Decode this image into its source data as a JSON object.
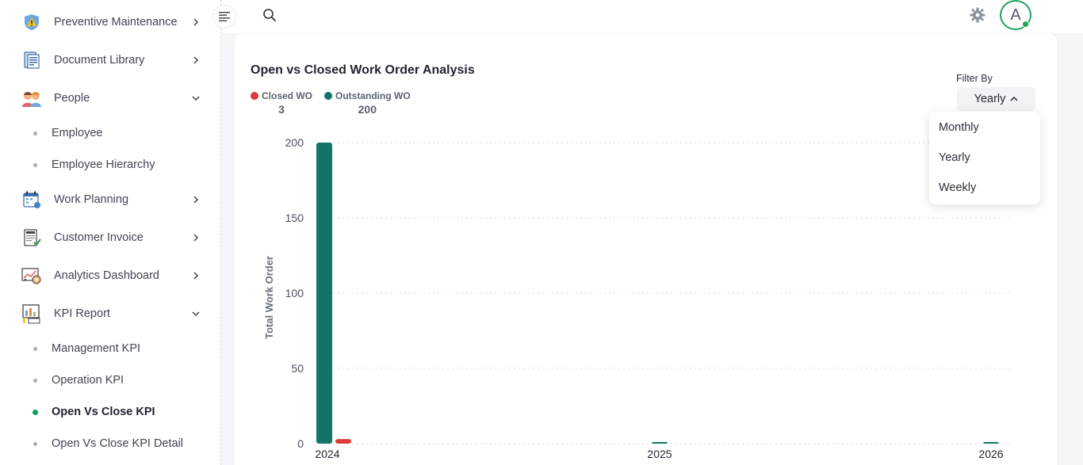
{
  "sidebar": {
    "items": [
      {
        "label": "Preventive Maintenance",
        "icon": "warning-shield-icon",
        "chevron": "right"
      },
      {
        "label": "Document Library",
        "icon": "document-library-icon",
        "chevron": "right"
      },
      {
        "label": "People",
        "icon": "people-icon",
        "chevron": "down"
      },
      {
        "label": "Work Planning",
        "icon": "calendar-icon",
        "chevron": "right"
      },
      {
        "label": "Customer Invoice",
        "icon": "invoice-icon",
        "chevron": "right"
      },
      {
        "label": "Analytics Dashboard",
        "icon": "analytics-icon",
        "chevron": "right"
      },
      {
        "label": "KPI Report",
        "icon": "kpi-report-icon",
        "chevron": "down"
      }
    ],
    "people_sub": [
      "Employee",
      "Employee Hierarchy"
    ],
    "kpi_sub": [
      "Management KPI",
      "Operation KPI",
      "Open Vs Close KPI",
      "Open Vs Close KPI Detail"
    ],
    "active_sub": "Open Vs Close KPI"
  },
  "header": {
    "avatar_initial": "A",
    "icons": [
      "menu-icon",
      "search-icon",
      "gear-icon"
    ]
  },
  "card": {
    "title": "Open vs Closed Work Order Analysis",
    "legend": [
      {
        "name": "Closed WO",
        "value": "3",
        "color": "#e03b3b"
      },
      {
        "name": "Outstanding WO",
        "value": "200",
        "color": "#127568"
      }
    ],
    "filter": {
      "label": "Filter By",
      "selected": "Yearly",
      "options": [
        "Monthly",
        "Yearly",
        "Weekly"
      ]
    }
  },
  "chart_data": {
    "type": "bar",
    "categories": [
      "2024",
      "2025",
      "2026"
    ],
    "series": [
      {
        "name": "Outstanding WO",
        "values": [
          200,
          0,
          0
        ],
        "color": "#127568"
      },
      {
        "name": "Closed WO",
        "values": [
          3,
          0,
          0
        ],
        "color": "#e03b3b"
      }
    ],
    "ylabel": "Total Work Order",
    "yticks": [
      0,
      50,
      100,
      150,
      200
    ],
    "ylim": [
      0,
      200
    ],
    "grid": true
  }
}
